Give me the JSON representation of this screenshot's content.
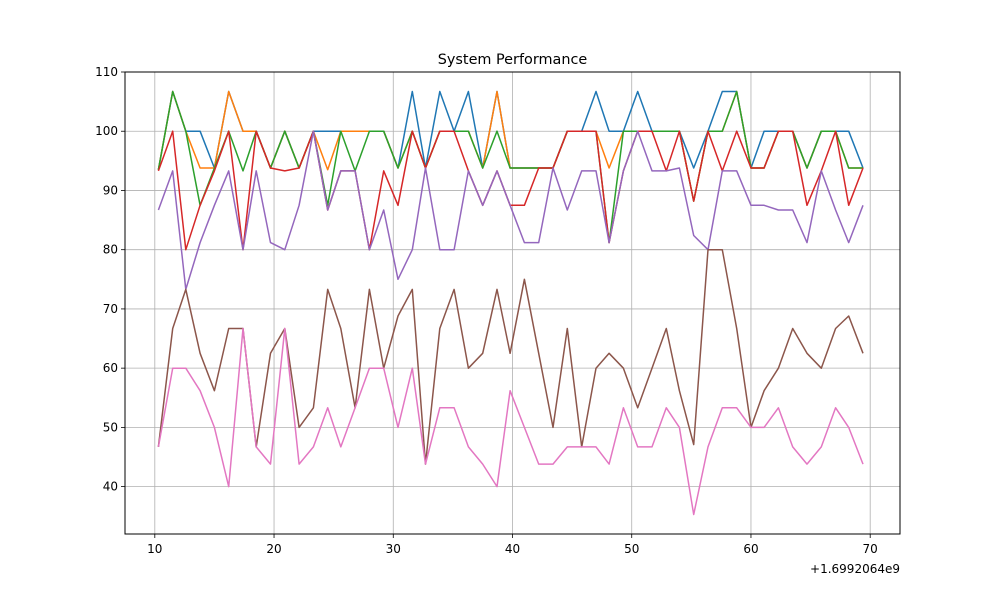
{
  "chart_data": {
    "type": "line",
    "title": "System Performance",
    "xlabel": "",
    "ylabel": "",
    "x_offset_label": "+1.6992064e9",
    "xlim": [
      7.5,
      72.5
    ],
    "ylim": [
      32,
      110
    ],
    "grid": true,
    "x_ticks": [
      10,
      20,
      30,
      40,
      50,
      60,
      70
    ],
    "x_tick_labels": [
      "10",
      "20",
      "30",
      "40",
      "50",
      "60",
      "70"
    ],
    "y_ticks": [
      40,
      50,
      60,
      70,
      80,
      90,
      100,
      110
    ],
    "y_tick_labels": [
      "40",
      "50",
      "60",
      "70",
      "80",
      "90",
      "100",
      "110"
    ],
    "x": [
      10.3,
      11.5,
      12.6,
      13.8,
      15.0,
      16.2,
      17.4,
      18.5,
      19.7,
      20.9,
      22.1,
      23.3,
      24.5,
      25.6,
      26.8,
      28.0,
      29.2,
      30.4,
      31.6,
      32.7,
      33.9,
      35.1,
      36.3,
      37.5,
      38.7,
      39.8,
      41.0,
      42.2,
      43.4,
      44.6,
      45.8,
      47.0,
      48.1,
      49.3,
      50.5,
      51.7,
      52.9,
      54.0,
      55.2,
      56.4,
      57.6,
      58.8,
      60.0,
      61.1,
      62.3,
      63.5,
      64.7,
      65.9,
      67.1,
      68.2,
      69.4
    ],
    "series": [
      {
        "color": "#1f77b4",
        "values": [
          93.5,
          106.7,
          100,
          100,
          93.8,
          106.7,
          100,
          100,
          93.8,
          100,
          93.8,
          100,
          100,
          100,
          100,
          100,
          100,
          93.8,
          106.7,
          93.8,
          106.7,
          100,
          106.7,
          93.8,
          106.7,
          93.8,
          93.8,
          93.8,
          93.8,
          100,
          100,
          106.7,
          100,
          100,
          106.7,
          100,
          100,
          100,
          93.8,
          100,
          106.7,
          106.7,
          93.8,
          100,
          100,
          100,
          93.8,
          100,
          100,
          100,
          93.8
        ]
      },
      {
        "color": "#ff7f0e",
        "values": [
          93.5,
          106.7,
          100,
          93.8,
          93.8,
          106.7,
          100,
          100,
          93.8,
          100,
          93.8,
          100,
          93.5,
          100,
          100,
          100,
          100,
          93.8,
          100,
          93.8,
          100,
          100,
          100,
          93.8,
          106.7,
          93.8,
          93.8,
          93.8,
          93.8,
          100,
          100,
          100,
          93.8,
          100,
          100,
          100,
          100,
          100,
          88.2,
          100,
          100,
          106.7,
          93.8,
          93.8,
          100,
          100,
          93.8,
          100,
          100,
          93.8,
          93.8
        ]
      },
      {
        "color": "#2ca02c",
        "values": [
          93.5,
          106.7,
          100,
          87.5,
          93.8,
          100,
          93.3,
          100,
          93.8,
          100,
          93.8,
          100,
          87.5,
          100,
          93.3,
          100,
          100,
          93.8,
          100,
          93.8,
          100,
          100,
          100,
          93.8,
          100,
          93.8,
          93.8,
          93.8,
          93.8,
          100,
          100,
          100,
          81.2,
          100,
          100,
          100,
          100,
          100,
          88.2,
          100,
          100,
          106.7,
          93.8,
          93.8,
          100,
          100,
          93.8,
          100,
          100,
          93.8,
          93.8
        ]
      },
      {
        "color": "#d62728",
        "values": [
          93.3,
          100,
          80,
          87.5,
          93.3,
          100,
          80,
          100,
          93.8,
          93.3,
          93.8,
          100,
          86.7,
          93.3,
          93.3,
          80,
          93.3,
          87.5,
          100,
          93.8,
          100,
          100,
          93.3,
          87.5,
          93.3,
          87.5,
          87.5,
          93.8,
          93.8,
          100,
          100,
          100,
          81.2,
          93.3,
          100,
          100,
          93.3,
          100,
          88.2,
          100,
          93.3,
          100,
          93.8,
          93.8,
          100,
          100,
          87.5,
          93.3,
          100,
          87.5,
          93.8
        ]
      },
      {
        "color": "#9467bd",
        "values": [
          86.7,
          93.3,
          73.3,
          81.2,
          87.5,
          93.3,
          80,
          93.3,
          81.2,
          80,
          87.5,
          100,
          86.7,
          93.3,
          93.3,
          80,
          86.7,
          75,
          80,
          93.8,
          80,
          80,
          93.3,
          87.5,
          93.3,
          87.5,
          81.2,
          81.2,
          93.8,
          86.7,
          93.3,
          93.3,
          81.2,
          93.3,
          100,
          93.3,
          93.3,
          93.8,
          82.4,
          80,
          93.3,
          93.3,
          87.5,
          87.5,
          86.7,
          86.7,
          81.2,
          93.3,
          86.7,
          81.2,
          87.5
        ]
      },
      {
        "color": "#8c564b",
        "values": [
          46.7,
          66.7,
          73.3,
          62.5,
          56.2,
          66.7,
          66.7,
          46.7,
          62.5,
          66.7,
          50,
          53.3,
          73.3,
          66.7,
          53.3,
          73.3,
          60,
          68.8,
          73.3,
          43.8,
          66.7,
          73.3,
          60,
          62.5,
          73.3,
          62.5,
          75,
          62.5,
          50,
          66.7,
          46.7,
          60,
          62.5,
          60,
          53.3,
          60,
          66.7,
          56.2,
          47.1,
          80,
          80,
          66.7,
          50,
          56.2,
          60,
          66.7,
          62.5,
          60,
          66.7,
          68.8,
          62.5
        ]
      },
      {
        "color": "#e377c2",
        "values": [
          46.7,
          60,
          60,
          56.2,
          50,
          40,
          66.7,
          46.7,
          43.8,
          66.7,
          43.8,
          46.7,
          53.3,
          46.7,
          53.3,
          60,
          60,
          50,
          60,
          43.8,
          53.3,
          53.3,
          46.7,
          43.8,
          40,
          56.2,
          50,
          43.8,
          43.8,
          46.7,
          46.7,
          46.7,
          43.8,
          53.3,
          46.7,
          46.7,
          53.3,
          50,
          35.3,
          46.7,
          53.3,
          53.3,
          50,
          50,
          53.3,
          46.7,
          43.8,
          46.7,
          53.3,
          50,
          43.8
        ]
      }
    ]
  }
}
